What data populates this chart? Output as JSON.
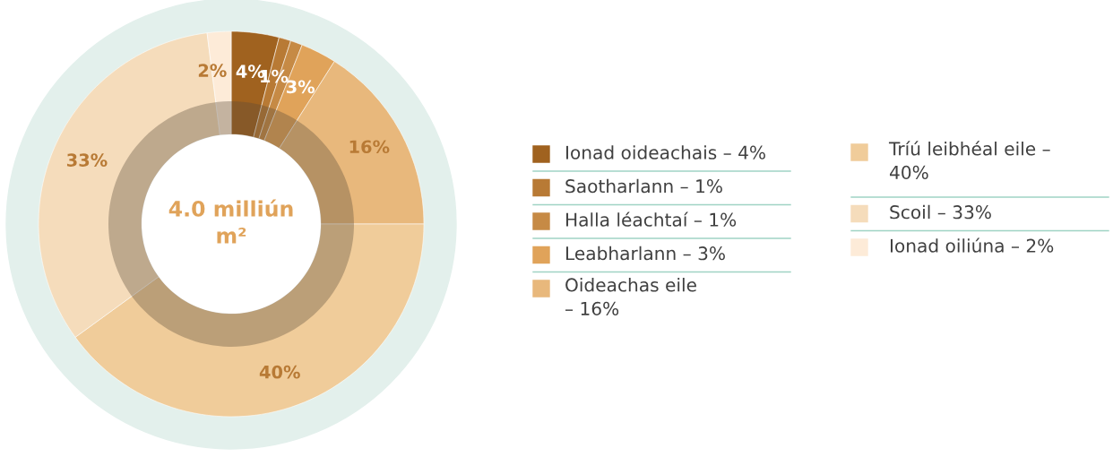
{
  "chart_data": {
    "type": "donut",
    "categories": [
      "Ionad oideachais – 4%",
      "Saotharlann – 1%",
      "Halla léachtaí – 1%",
      "Leabharlann – 3%",
      "Oideachas eile\n– 16%",
      "Tríú leibhéal eile –\n40%",
      "Scoil – 33%",
      "Ionad oiliúna – 2%"
    ],
    "values": [
      4,
      1,
      1,
      3,
      16,
      40,
      33,
      2
    ],
    "colors": [
      "#a0621f",
      "#b87a35",
      "#c68a45",
      "#e0a35a",
      "#e8b87c",
      "#f0cc9a",
      "#f5dcbb",
      "#fdebd8"
    ],
    "value_labels": [
      "4%",
      "1%",
      null,
      "3%",
      "16%",
      "40%",
      "33%",
      "2%"
    ],
    "annotations": [
      "4.0 milliún\nm²"
    ],
    "legend": "right"
  }
}
